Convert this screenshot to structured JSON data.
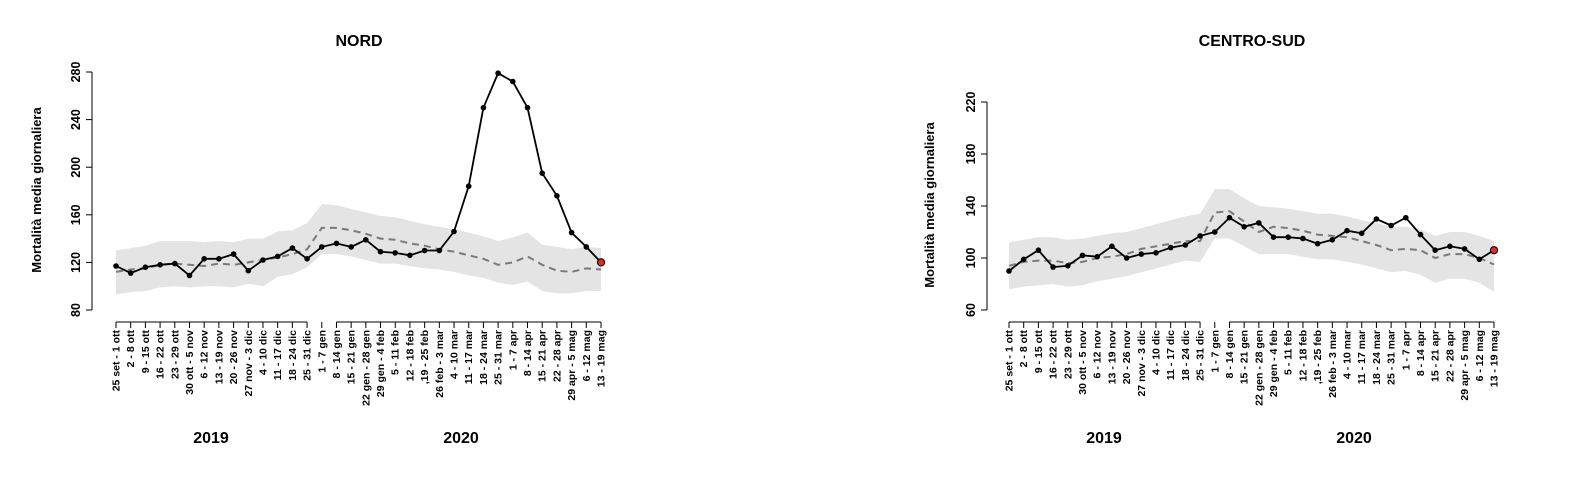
{
  "chart_data": [
    {
      "type": "line",
      "title": "NORD",
      "ylabel": "Mortalità media giornaliera",
      "xlabel": "",
      "ylim": [
        80,
        280
      ],
      "yticks": [
        80,
        120,
        160,
        200,
        240,
        280
      ],
      "groups": [
        {
          "label": "2019",
          "start": 0,
          "end": 14
        },
        {
          "label": "2020",
          "start": 15,
          "end": 34
        }
      ],
      "categories": [
        "25 set - 1 ott",
        "2 - 8 ott",
        "9 - 15 ott",
        "16 - 22 ott",
        "23 - 29 ott",
        "30 ott - 5 nov",
        "6 - 12 nov",
        "13 - 19 nov",
        "20 - 26 nov",
        "27 nov - 3 dic",
        "4 - 10 dic",
        "11 - 17 dic",
        "18 - 24 dic",
        "25 - 31 dic",
        "1 - 7 gen",
        "8 - 14 gen",
        "15 - 21 gen",
        "22 gen - 28 gen",
        "29 gen - 4 feb",
        "5 - 11 feb",
        "12 - 18 feb",
        ",19 - 25 feb",
        "26 feb - 3 mar",
        "4 - 10 mar",
        "11 - 17 mar",
        "18 - 24 mar",
        "25 - 31 mar",
        "1 - 7 apr",
        "8 - 14 apr",
        "15 - 21 apr",
        "22 - 28 apr",
        "29 apr - 5 mag",
        "6 - 12 mag",
        "13 - 19 mag"
      ],
      "series": [
        {
          "name": "observed",
          "values": [
            117,
            111,
            116,
            118,
            119,
            109,
            123,
            123,
            127,
            113,
            122,
            125,
            132,
            123,
            133,
            136,
            133,
            139,
            129,
            128,
            126,
            130,
            130,
            146,
            184,
            250,
            279,
            272,
            250,
            195,
            176,
            145,
            133,
            120
          ]
        },
        {
          "name": "expected",
          "values": [
            112,
            114,
            115,
            118,
            119,
            118,
            117,
            119,
            118,
            120,
            122,
            124,
            127,
            131,
            149,
            149,
            147,
            144,
            140,
            139,
            136,
            134,
            131,
            129,
            126,
            123,
            118,
            120,
            125,
            118,
            113,
            112,
            115,
            114
          ]
        },
        {
          "name": "band_upper",
          "values": [
            130,
            132,
            134,
            138,
            138,
            138,
            137,
            138,
            137,
            140,
            140,
            146,
            147,
            153,
            169,
            168,
            165,
            162,
            159,
            158,
            155,
            152,
            150,
            148,
            145,
            142,
            138,
            141,
            145,
            135,
            133,
            131,
            133,
            132
          ]
        },
        {
          "name": "band_lower",
          "values": [
            93,
            95,
            96,
            99,
            100,
            99,
            100,
            100,
            99,
            102,
            100,
            108,
            110,
            116,
            127,
            127,
            125,
            122,
            119,
            119,
            117,
            115,
            114,
            112,
            109,
            107,
            103,
            101,
            104,
            96,
            94,
            94,
            96,
            96
          ]
        }
      ],
      "highlight_last_point": "#dd2b1c"
    },
    {
      "type": "line",
      "title": "CENTRO-SUD",
      "ylabel": "Mortalità media giornaliera",
      "xlabel": "",
      "ylim": [
        60,
        220
      ],
      "yticks": [
        60,
        100,
        140,
        180,
        220
      ],
      "groups": [
        {
          "label": "2019",
          "start": 0,
          "end": 14
        },
        {
          "label": "2020",
          "start": 15,
          "end": 34
        }
      ],
      "categories": [
        "25 set - 1 ott",
        "2 - 8 ott",
        "9 - 15 ott",
        "16 - 22 ott",
        "23 - 29 ott",
        "30 ott - 5 nov",
        "6 - 12 nov",
        "13 - 19 nov",
        "20 - 26 nov",
        "27 nov - 3 dic",
        "4 - 10 dic",
        "11 - 17 dic",
        "18 - 24 dic",
        "25 - 31 dic",
        "1 - 7 gen",
        "8 - 14 gen",
        "15 - 21 gen",
        "22 gen - 28 gen",
        "29 gen - 4 feb",
        "5 - 11 feb",
        "12 - 18 feb",
        ",19 - 25 feb",
        "26 feb - 3 mar",
        "4 - 10 mar",
        "11 - 17 mar",
        "18 - 24 mar",
        "25 - 31 mar",
        "1 - 7 apr",
        "8 - 14 apr",
        "15 - 21 apr",
        "22 - 28 apr",
        "29 apr - 5 mag",
        "6 - 12 mag",
        "13 - 19 mag"
      ],
      "series": [
        {
          "name": "observed",
          "values": [
            90,
            99,
            106,
            93,
            94,
            102,
            101,
            109,
            100,
            103,
            104,
            108,
            110,
            117,
            120,
            131,
            124,
            127,
            116,
            116,
            115,
            111,
            114,
            121,
            119,
            130,
            125,
            131,
            118,
            106,
            109,
            107,
            99,
            106
          ]
        },
        {
          "name": "expected",
          "values": [
            94,
            97,
            98,
            98,
            96,
            97,
            100,
            101,
            103,
            107,
            109,
            111,
            113,
            113,
            135,
            136,
            128,
            120,
            124,
            123,
            121,
            118,
            117,
            116,
            113,
            110,
            106,
            107,
            106,
            100,
            103,
            103,
            100,
            95
          ]
        },
        {
          "name": "band_upper",
          "values": [
            112,
            114,
            116,
            116,
            114,
            115,
            117,
            119,
            120,
            123,
            126,
            129,
            132,
            134,
            153,
            153,
            146,
            140,
            139,
            138,
            136,
            134,
            134,
            132,
            129,
            127,
            124,
            124,
            122,
            117,
            120,
            120,
            117,
            113
          ]
        },
        {
          "name": "band_lower",
          "values": [
            76,
            78,
            79,
            80,
            78,
            79,
            82,
            84,
            86,
            89,
            92,
            95,
            98,
            97,
            115,
            115,
            109,
            103,
            103,
            103,
            101,
            99,
            99,
            97,
            95,
            92,
            89,
            90,
            87,
            81,
            84,
            84,
            81,
            74
          ]
        }
      ],
      "highlight_last_point": "#dd2b1c"
    }
  ]
}
